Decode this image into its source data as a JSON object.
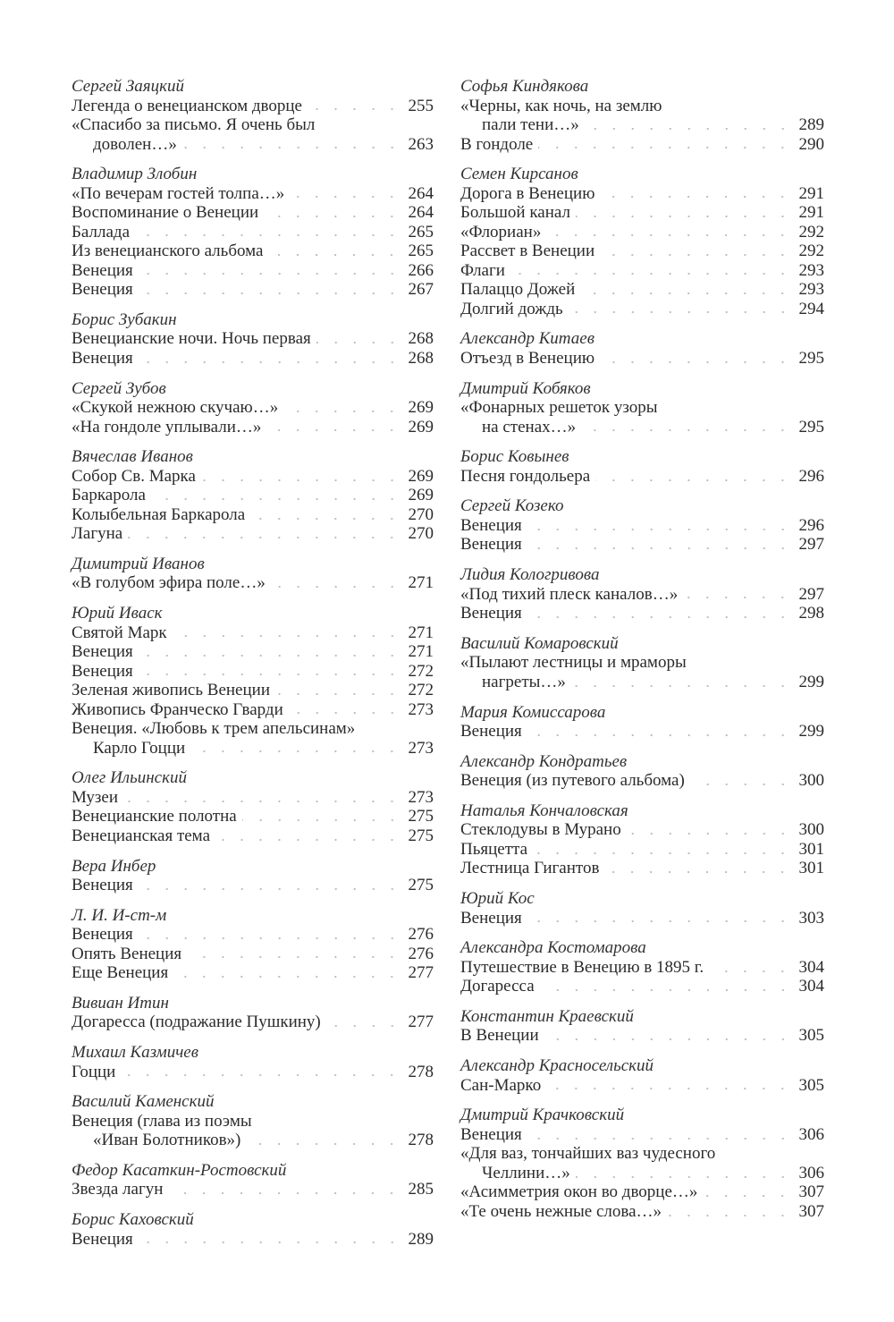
{
  "columns": [
    [
      {
        "author": "Сергей Заяцкий",
        "entries": [
          {
            "lines": [
              "Легенда о венецианском дворце"
            ],
            "page": "255"
          },
          {
            "lines": [
              "«Спасибо за письмо. Я очень был",
              "доволен…»"
            ],
            "page": "263"
          }
        ]
      },
      {
        "author": "Владимир Злобин",
        "entries": [
          {
            "lines": [
              "«По вечерам гостей толпа…»"
            ],
            "page": "264"
          },
          {
            "lines": [
              "Воспоминание о Венеции"
            ],
            "page": "264"
          },
          {
            "lines": [
              "Баллада"
            ],
            "page": "265"
          },
          {
            "lines": [
              "Из венецианского альбома"
            ],
            "page": "265"
          },
          {
            "lines": [
              "Венеция"
            ],
            "page": "266"
          },
          {
            "lines": [
              "Венеция"
            ],
            "page": "267"
          }
        ]
      },
      {
        "author": "Борис Зубакин",
        "entries": [
          {
            "lines": [
              "Венецианские ночи. Ночь первая"
            ],
            "page": "268"
          },
          {
            "lines": [
              "Венеция"
            ],
            "page": "268"
          }
        ]
      },
      {
        "author": "Сергей Зубов",
        "entries": [
          {
            "lines": [
              "«Скукой нежною скучаю…»"
            ],
            "page": "269"
          },
          {
            "lines": [
              "«На гондоле уплывали…»"
            ],
            "page": "269"
          }
        ]
      },
      {
        "author": "Вячеслав Иванов",
        "entries": [
          {
            "lines": [
              "Собор Св. Марка"
            ],
            "page": "269"
          },
          {
            "lines": [
              "Баркарола"
            ],
            "page": "269"
          },
          {
            "lines": [
              "Колыбельная Баркарола"
            ],
            "page": "270"
          },
          {
            "lines": [
              "Лагуна"
            ],
            "page": "270"
          }
        ]
      },
      {
        "author": "Димитрий Иванов",
        "entries": [
          {
            "lines": [
              "«В голубом эфира поле…»"
            ],
            "page": "271"
          }
        ]
      },
      {
        "author": "Юрий Иваск",
        "entries": [
          {
            "lines": [
              "Святой Марк"
            ],
            "page": "271"
          },
          {
            "lines": [
              "Венеция"
            ],
            "page": "271"
          },
          {
            "lines": [
              "Венеция"
            ],
            "page": "272"
          },
          {
            "lines": [
              "Зеленая живопись Венеции"
            ],
            "page": "272"
          },
          {
            "lines": [
              "Живопись Франческо Гварди"
            ],
            "page": "273"
          },
          {
            "lines": [
              "Венеция. «Любовь к трем апельсинам»",
              "Карло Гоцци"
            ],
            "page": "273"
          }
        ]
      },
      {
        "author": "Олег Ильинский",
        "entries": [
          {
            "lines": [
              "Музеи"
            ],
            "page": "273"
          },
          {
            "lines": [
              "Венецианские полотна"
            ],
            "page": "275"
          },
          {
            "lines": [
              "Венецианская тема"
            ],
            "page": "275"
          }
        ]
      },
      {
        "author": "Вера Инбер",
        "entries": [
          {
            "lines": [
              "Венеция"
            ],
            "page": "275"
          }
        ]
      },
      {
        "author": "Л. И. И-ст-м",
        "entries": [
          {
            "lines": [
              "Венеция"
            ],
            "page": "276"
          },
          {
            "lines": [
              "Опять Венеция"
            ],
            "page": "276"
          },
          {
            "lines": [
              "Еще Венеция"
            ],
            "page": "277"
          }
        ]
      },
      {
        "author": "Вивиан Итин",
        "entries": [
          {
            "lines": [
              "Догаресса (подражание Пушкину)"
            ],
            "page": "277"
          }
        ]
      },
      {
        "author": "Михаил Казмичев",
        "entries": [
          {
            "lines": [
              "Гоцци"
            ],
            "page": "278"
          }
        ]
      },
      {
        "author": "Василий Каменский",
        "entries": [
          {
            "lines": [
              "Венеция (глава из поэмы",
              "«Иван Болотников»)"
            ],
            "page": "278"
          }
        ]
      },
      {
        "author": "Федор Касаткин-Ростовский",
        "entries": [
          {
            "lines": [
              "Звезда лагун"
            ],
            "page": "285"
          }
        ]
      },
      {
        "author": "Борис Каховский",
        "entries": [
          {
            "lines": [
              "Венеция"
            ],
            "page": "289"
          }
        ]
      }
    ],
    [
      {
        "author": "Софья Киндякова",
        "entries": [
          {
            "lines": [
              "«Черны, как ночь, на землю",
              "пали тени…»"
            ],
            "page": "289"
          },
          {
            "lines": [
              "В гондоле"
            ],
            "page": "290"
          }
        ]
      },
      {
        "author": "Семен Кирсанов",
        "entries": [
          {
            "lines": [
              "Дорога в Венецию"
            ],
            "page": "291"
          },
          {
            "lines": [
              "Большой канал"
            ],
            "page": "291"
          },
          {
            "lines": [
              "«Флориан»"
            ],
            "page": "292"
          },
          {
            "lines": [
              "Рассвет в Венеции"
            ],
            "page": "292"
          },
          {
            "lines": [
              "Флаги"
            ],
            "page": "293"
          },
          {
            "lines": [
              "Палаццо Дожей"
            ],
            "page": "293"
          },
          {
            "lines": [
              "Долгий дождь"
            ],
            "page": "294"
          }
        ]
      },
      {
        "author": "Александр Китаев",
        "entries": [
          {
            "lines": [
              "Отъезд в Венецию"
            ],
            "page": "295"
          }
        ]
      },
      {
        "author": "Дмитрий Кобяков",
        "entries": [
          {
            "lines": [
              "«Фонарных решеток узоры",
              "на стенах…»"
            ],
            "page": "295"
          }
        ]
      },
      {
        "author": "Борис Ковынев",
        "entries": [
          {
            "lines": [
              "Песня гондольера"
            ],
            "page": "296"
          }
        ]
      },
      {
        "author": "Сергей Козеко",
        "entries": [
          {
            "lines": [
              "Венеция"
            ],
            "page": "296"
          },
          {
            "lines": [
              "Венеция"
            ],
            "page": "297"
          }
        ]
      },
      {
        "author": "Лидия Кологривова",
        "entries": [
          {
            "lines": [
              "«Под тихий плеск каналов…»"
            ],
            "page": "297"
          },
          {
            "lines": [
              "Венеция"
            ],
            "page": "298"
          }
        ]
      },
      {
        "author": "Василий Комаровский",
        "entries": [
          {
            "lines": [
              "«Пылают лестницы и мраморы",
              "нагреты…»"
            ],
            "page": "299"
          }
        ]
      },
      {
        "author": "Мария Комиссарова",
        "entries": [
          {
            "lines": [
              "Венеция"
            ],
            "page": "299"
          }
        ]
      },
      {
        "author": "Александр Кондратьев",
        "entries": [
          {
            "lines": [
              "Венеция (из путевого альбома)"
            ],
            "page": "300"
          }
        ]
      },
      {
        "author": "Наталья Кончаловская",
        "entries": [
          {
            "lines": [
              "Стеклодувы в Мурано"
            ],
            "page": "300"
          },
          {
            "lines": [
              "Пьяцетта"
            ],
            "page": "301"
          },
          {
            "lines": [
              "Лестница Гигантов"
            ],
            "page": "301"
          }
        ]
      },
      {
        "author": "Юрий Кос",
        "entries": [
          {
            "lines": [
              "Венеция"
            ],
            "page": "303"
          }
        ]
      },
      {
        "author": "Александра Костомарова",
        "entries": [
          {
            "lines": [
              "Путешествие в Венецию в 1895 г."
            ],
            "page": "304"
          },
          {
            "lines": [
              "Догаресса"
            ],
            "page": "304"
          }
        ]
      },
      {
        "author": "Константин Краевский",
        "entries": [
          {
            "lines": [
              "В Венеции"
            ],
            "page": "305"
          }
        ]
      },
      {
        "author": "Александр Красносельский",
        "entries": [
          {
            "lines": [
              "Сан-Марко"
            ],
            "page": "305"
          }
        ]
      },
      {
        "author": "Дмитрий Крачковский",
        "entries": [
          {
            "lines": [
              "Венеция"
            ],
            "page": "306"
          },
          {
            "lines": [
              "«Для ваз, тончайших ваз чудесного",
              "Челлини…»"
            ],
            "page": "306"
          },
          {
            "lines": [
              "«Асимметрия окон во дворце…»"
            ],
            "page": "307"
          },
          {
            "lines": [
              "«Те очень нежные слова…»"
            ],
            "page": "307"
          }
        ]
      }
    ]
  ]
}
